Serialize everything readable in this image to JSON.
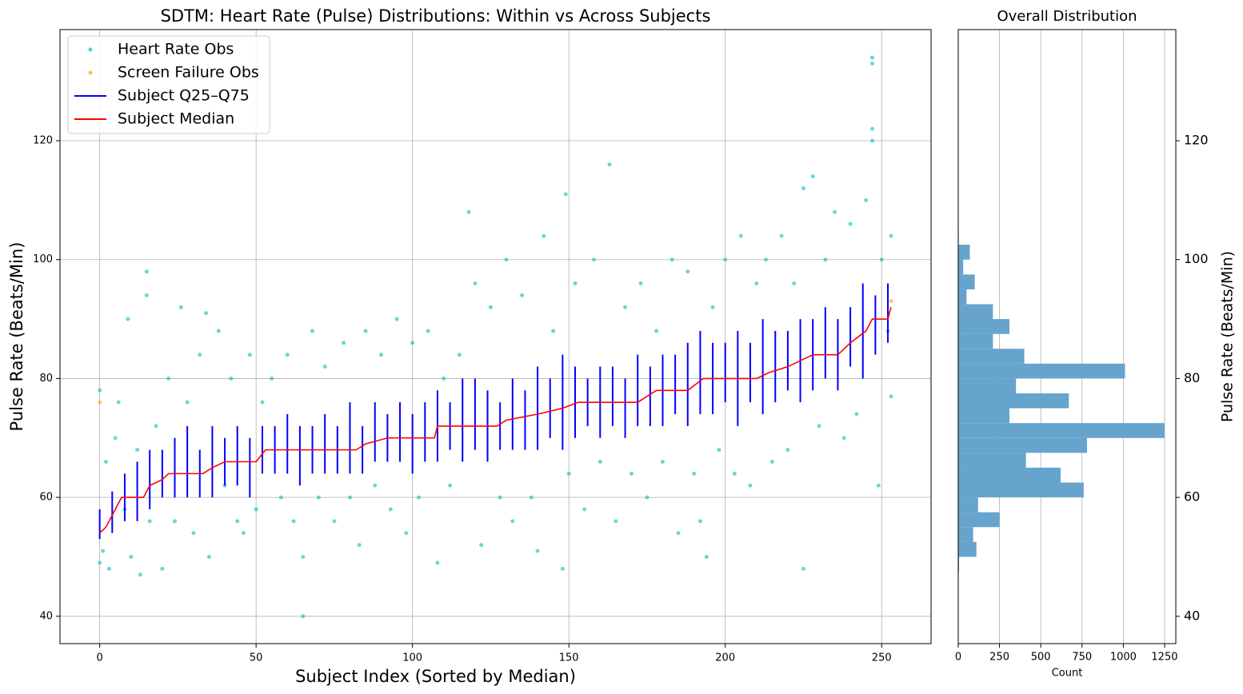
{
  "chart_data": [
    {
      "type": "scatter",
      "title": "SDTM: Heart Rate (Pulse) Distributions: Within vs Across Subjects",
      "xlabel": "Subject Index (Sorted by Median)",
      "ylabel": "Pulse Rate (Beats/Min)",
      "xlim": [
        -12.7,
        265.8
      ],
      "xticks": [
        0,
        50,
        100,
        150,
        200,
        250
      ],
      "ylim": [
        35.4,
        138.7
      ],
      "yticks": [
        40,
        60,
        80,
        100,
        120
      ],
      "grid": true,
      "legend": "upper left",
      "series": [
        {
          "name": "Heart Rate Obs",
          "type": "scatter",
          "color": "#00bfbf",
          "x": [
            0,
            0,
            1,
            2,
            3,
            5,
            6,
            8,
            9,
            10,
            12,
            13,
            15,
            15,
            16,
            18,
            20,
            22,
            24,
            26,
            28,
            30,
            32,
            34,
            35,
            38,
            40,
            42,
            44,
            46,
            48,
            50,
            52,
            55,
            58,
            60,
            62,
            65,
            65,
            68,
            70,
            72,
            75,
            78,
            80,
            83,
            85,
            88,
            90,
            93,
            95,
            98,
            100,
            102,
            105,
            108,
            110,
            112,
            115,
            118,
            120,
            122,
            125,
            128,
            130,
            132,
            135,
            138,
            140,
            142,
            145,
            148,
            149,
            150,
            152,
            155,
            158,
            160,
            163,
            165,
            168,
            170,
            173,
            175,
            178,
            180,
            183,
            185,
            188,
            190,
            192,
            194,
            196,
            198,
            200,
            203,
            205,
            208,
            210,
            213,
            215,
            218,
            220,
            222,
            225,
            225,
            228,
            230,
            232,
            235,
            238,
            240,
            242,
            245,
            247,
            247,
            247,
            247,
            249,
            250,
            252,
            253,
            253
          ],
          "values": [
            78,
            49,
            51,
            66,
            48,
            70,
            76,
            58,
            90,
            50,
            68,
            47,
            98,
            94,
            56,
            72,
            48,
            80,
            56,
            92,
            76,
            54,
            84,
            91,
            50,
            88,
            62,
            80,
            56,
            54,
            84,
            58,
            76,
            80,
            60,
            84,
            56,
            40,
            50,
            88,
            60,
            82,
            56,
            86,
            60,
            52,
            88,
            62,
            84,
            58,
            90,
            54,
            86,
            60,
            88,
            49,
            80,
            62,
            84,
            108,
            96,
            52,
            92,
            60,
            100,
            56,
            94,
            60,
            51,
            104,
            88,
            48,
            111,
            64,
            96,
            58,
            100,
            66,
            116,
            56,
            92,
            64,
            96,
            60,
            88,
            66,
            100,
            54,
            98,
            64,
            56,
            50,
            92,
            68,
            100,
            64,
            104,
            62,
            96,
            100,
            66,
            104,
            68,
            96,
            48,
            112,
            114,
            72,
            100,
            108,
            70,
            106,
            74,
            110,
            134,
            133,
            122,
            120,
            62,
            100,
            88,
            77,
            104
          ]
        },
        {
          "name": "Screen Failure Obs",
          "type": "scatter",
          "color": "#ffa500",
          "x": [
            0,
            253
          ],
          "values": [
            76,
            93
          ]
        },
        {
          "name": "Subject Q25–Q75",
          "type": "range",
          "color": "#0000ff",
          "x": [
            0,
            4,
            8,
            12,
            16,
            20,
            24,
            28,
            32,
            36,
            40,
            44,
            48,
            52,
            56,
            60,
            64,
            68,
            72,
            76,
            80,
            84,
            88,
            92,
            96,
            100,
            104,
            108,
            112,
            116,
            120,
            124,
            128,
            132,
            136,
            140,
            144,
            148,
            152,
            156,
            160,
            164,
            168,
            172,
            176,
            180,
            184,
            188,
            192,
            196,
            200,
            204,
            208,
            212,
            216,
            220,
            224,
            228,
            232,
            236,
            240,
            244,
            248,
            252
          ],
          "low": [
            53,
            54,
            56,
            56,
            58,
            60,
            60,
            60,
            60,
            60,
            62,
            62,
            60,
            64,
            64,
            64,
            62,
            64,
            64,
            64,
            64,
            64,
            66,
            66,
            66,
            64,
            66,
            66,
            68,
            66,
            68,
            66,
            68,
            68,
            68,
            68,
            70,
            68,
            70,
            72,
            70,
            72,
            70,
            72,
            72,
            72,
            74,
            72,
            74,
            74,
            76,
            72,
            76,
            74,
            76,
            78,
            76,
            78,
            80,
            78,
            82,
            80,
            84,
            86
          ],
          "high": [
            58,
            61,
            64,
            66,
            68,
            68,
            70,
            72,
            68,
            72,
            70,
            72,
            70,
            72,
            72,
            74,
            72,
            72,
            74,
            72,
            76,
            72,
            76,
            74,
            76,
            74,
            76,
            78,
            76,
            80,
            80,
            78,
            76,
            80,
            78,
            82,
            80,
            84,
            82,
            80,
            82,
            82,
            80,
            84,
            82,
            84,
            84,
            86,
            88,
            86,
            86,
            88,
            86,
            90,
            88,
            88,
            90,
            90,
            92,
            90,
            92,
            96,
            94,
            96
          ]
        },
        {
          "name": "Subject Median",
          "type": "line",
          "color": "#ff0000",
          "x": [
            0,
            2,
            4,
            5,
            7,
            14,
            16,
            20,
            22,
            33,
            36,
            40,
            50,
            53,
            82,
            85,
            92,
            107,
            108,
            127,
            130,
            140,
            148,
            153,
            172,
            175,
            178,
            188,
            193,
            210,
            214,
            220,
            228,
            236,
            240,
            245,
            247,
            252,
            253
          ],
          "values": [
            54,
            55,
            57,
            58,
            60,
            60,
            62,
            63,
            64,
            64,
            65,
            66,
            66,
            68,
            68,
            69,
            70,
            70,
            72,
            72,
            73,
            74,
            75,
            76,
            76,
            77,
            78,
            78,
            80,
            80,
            81,
            82,
            84,
            84,
            86,
            88,
            90,
            90,
            92
          ]
        }
      ]
    },
    {
      "type": "histogram",
      "orientation": "horizontal",
      "title": "Overall Distribution",
      "xlabel": "Count",
      "ylabel": "Pulse Rate (Beats/Min)",
      "color": "#66a3cd",
      "bins": [
        47.5,
        50,
        52.5,
        55,
        57.5,
        60,
        62.5,
        65,
        67.5,
        70,
        72.5,
        75,
        77.5,
        80,
        82.5,
        85,
        87.5,
        90,
        92.5,
        95,
        97.5,
        100,
        102.5,
        105
      ],
      "values": [
        5,
        110,
        90,
        250,
        120,
        760,
        620,
        410,
        780,
        1250,
        310,
        670,
        350,
        1010,
        400,
        210,
        310,
        210,
        50,
        100,
        30,
        70,
        3
      ],
      "xlim": [
        0,
        1318
      ],
      "xticks": [
        0,
        250,
        500,
        750,
        1000,
        1250
      ],
      "ylim": [
        35.4,
        138.7
      ],
      "yticks": [
        40,
        60,
        80,
        100,
        120
      ],
      "grid": true
    }
  ]
}
